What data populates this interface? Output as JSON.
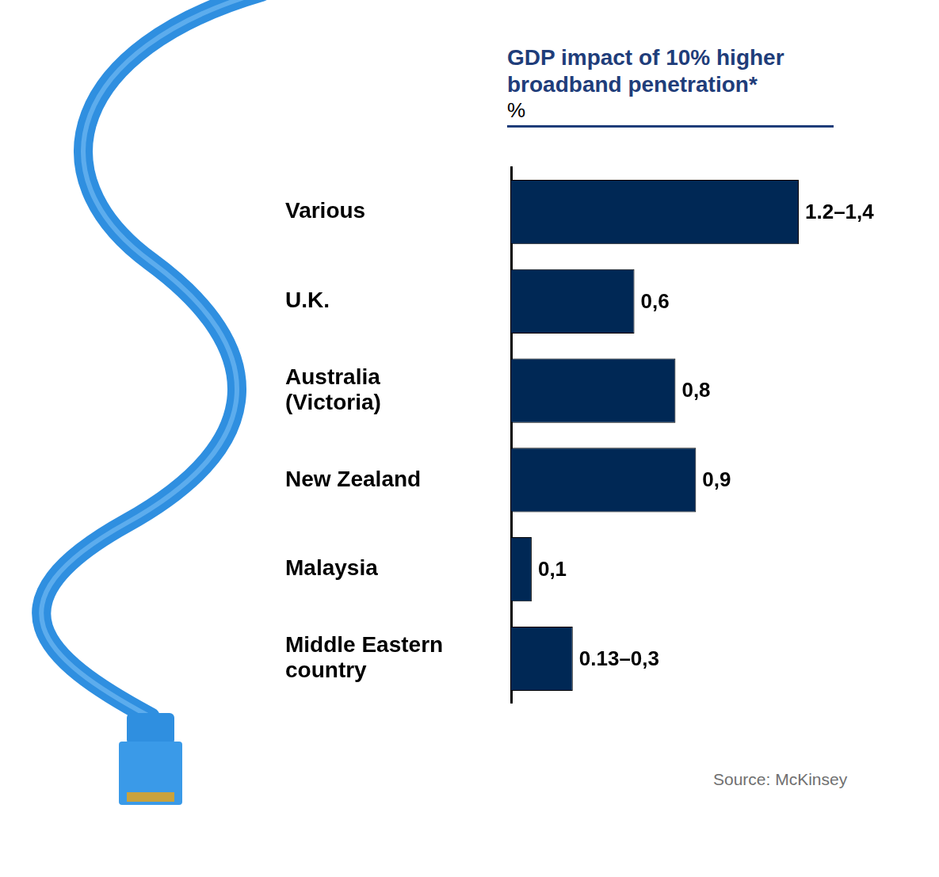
{
  "chart_data": {
    "type": "bar",
    "title": "GDP impact of 10% higher broadband penetration*",
    "subtitle": "%",
    "categories": [
      "Various",
      "U.K.",
      "Australia (Victoria)",
      "New Zealand",
      "Malaysia",
      "Middle Eastern country"
    ],
    "values": [
      1.4,
      0.6,
      0.8,
      0.9,
      0.1,
      0.3
    ],
    "value_labels": [
      "1.2–1,4",
      "0,6",
      "0,8",
      "0,9",
      "0,1",
      "0.13–0,3"
    ],
    "color": "#002855",
    "orientation": "horizontal",
    "data_labels": true,
    "tick_labels": "y",
    "grid": false,
    "xlim": [
      0,
      1.4
    ],
    "annotations": [
      "Source: McKinsey"
    ]
  }
}
